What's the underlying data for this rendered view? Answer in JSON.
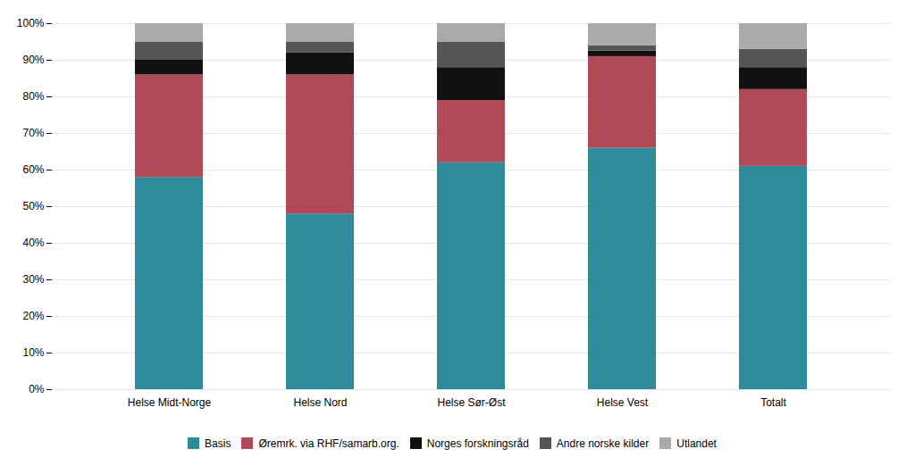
{
  "chart_data": {
    "type": "bar",
    "stacked": true,
    "categories": [
      "Helse Midt-Norge",
      "Helse Nord",
      "Helse Sør-Øst",
      "Helse Vest",
      "Totalt"
    ],
    "series": [
      {
        "name": "Basis",
        "color": "#2e8b9a",
        "values": [
          58,
          48,
          62,
          66,
          61
        ]
      },
      {
        "name": "Øremrk. via RHF/samarb.org.",
        "color": "#b04a56",
        "values": [
          28,
          38,
          17,
          25,
          21
        ]
      },
      {
        "name": "Norges forskningsråd",
        "color": "#111111",
        "values": [
          4,
          6,
          9,
          1.5,
          6
        ]
      },
      {
        "name": "Andre norske kilder",
        "color": "#555555",
        "values": [
          5,
          3,
          7,
          1.5,
          5
        ]
      },
      {
        "name": "Utlandet",
        "color": "#aaaaaa",
        "values": [
          5,
          5,
          5,
          6,
          7
        ]
      }
    ],
    "ylim": [
      0,
      100
    ],
    "yticks": [
      {
        "value": 0,
        "label": "0%"
      },
      {
        "value": 10,
        "label": "10%"
      },
      {
        "value": 20,
        "label": "20%"
      },
      {
        "value": 30,
        "label": "30%"
      },
      {
        "value": 40,
        "label": "40%"
      },
      {
        "value": 50,
        "label": "50%"
      },
      {
        "value": 60,
        "label": "60%"
      },
      {
        "value": 70,
        "label": "70%"
      },
      {
        "value": 80,
        "label": "80%"
      },
      {
        "value": 90,
        "label": "90%"
      },
      {
        "value": 100,
        "label": "100%"
      }
    ],
    "grid": true,
    "legend": "bottom"
  }
}
